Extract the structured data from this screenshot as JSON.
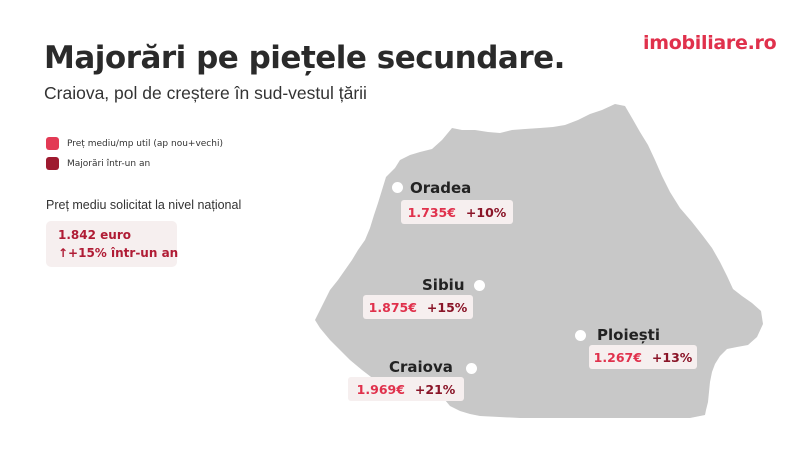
{
  "header": {
    "title": "Majorări pe piețele secundare.",
    "subtitle": "Craiova, pol de creștere în sud-vestul țării",
    "logo": "imobiliare.ro"
  },
  "legend": [
    {
      "label": "Preț mediu/mp util (ap nou+vechi)",
      "color": "#e33a55"
    },
    {
      "label": "Majorări într-un an",
      "color": "#9e1a2f"
    }
  ],
  "national": {
    "label": "Preț mediu solicitat la nivel național",
    "value": "1.842 euro",
    "change": "↑+15% într-un an"
  },
  "cities": [
    {
      "name": "Oradea",
      "price": "1.735€",
      "change": "+10%"
    },
    {
      "name": "Sibiu",
      "price": "1.875€",
      "change": "+15%"
    },
    {
      "name": "Ploiești",
      "price": "1.267€",
      "change": "+13%"
    },
    {
      "name": "Craiova",
      "price": "1.969€",
      "change": "+21%"
    }
  ],
  "colors": {
    "brand": "#e0314c",
    "map": "#c8c8c8",
    "box": "#f6efef"
  }
}
